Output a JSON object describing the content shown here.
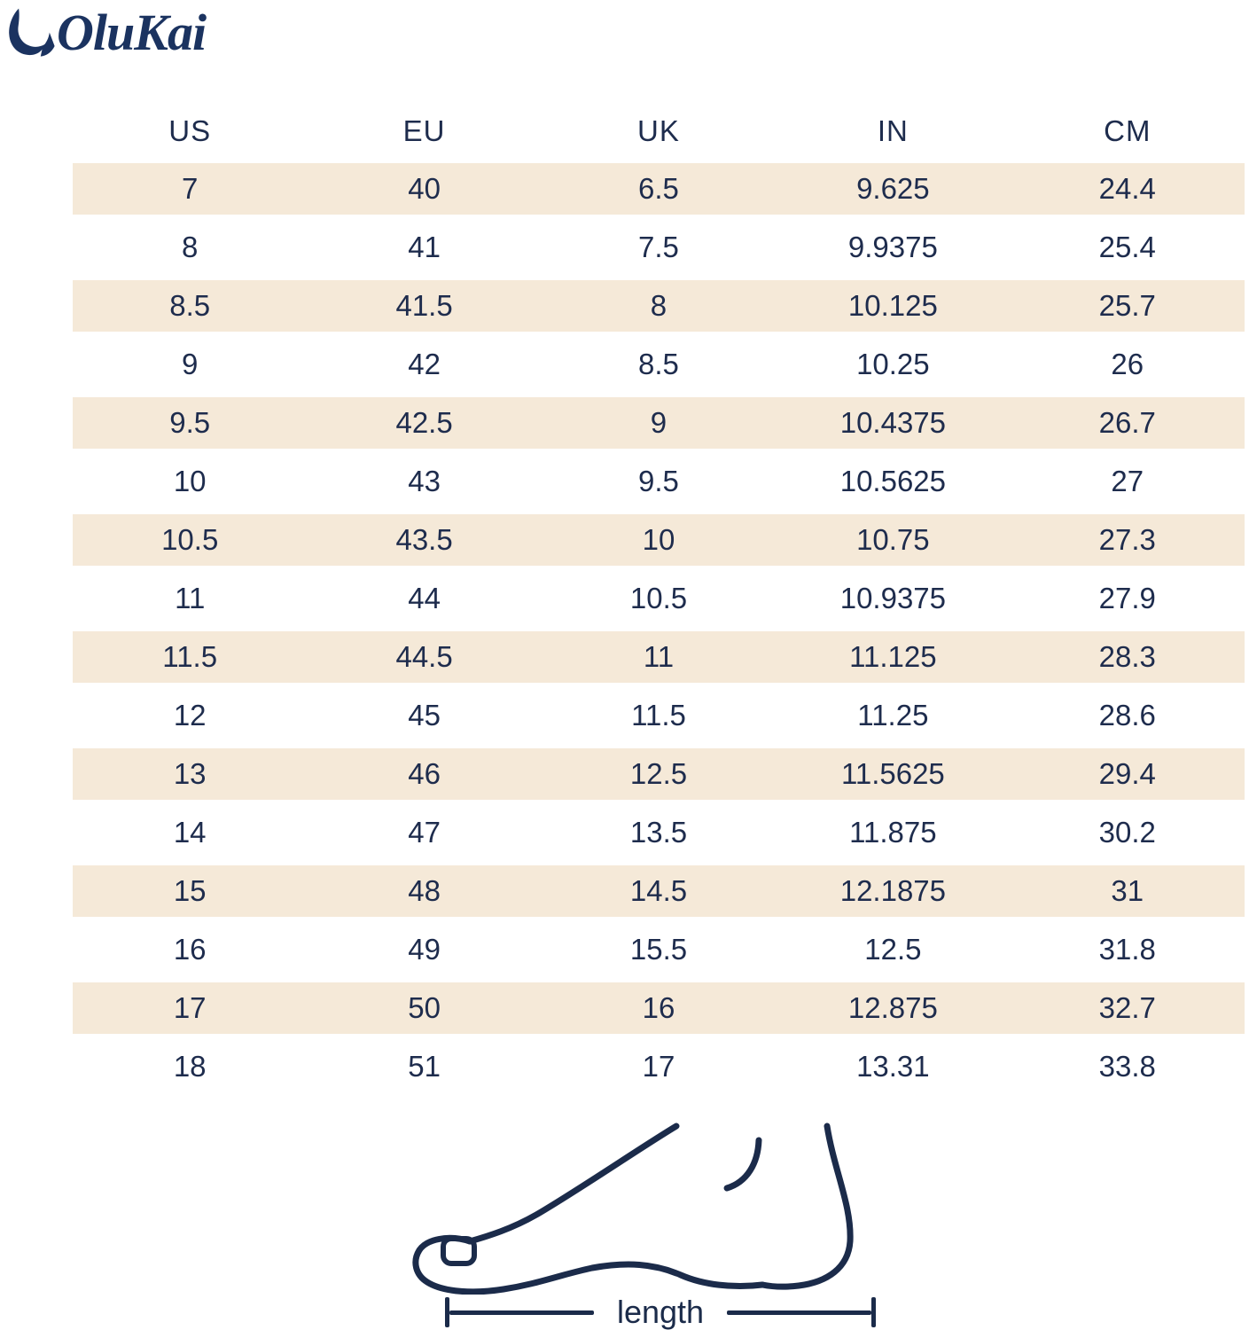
{
  "brand": {
    "name": "OluKai"
  },
  "colors": {
    "navy_text": "#1e2c4d",
    "logo_navy": "#1b3360",
    "band_beige": "#f5e9d8",
    "line_navy": "#1b2b4a",
    "background": "#ffffff"
  },
  "chart_data": {
    "type": "table",
    "columns": [
      "US",
      "EU",
      "UK",
      "IN",
      "CM"
    ],
    "rows": [
      [
        "7",
        "40",
        "6.5",
        "9.625",
        "24.4"
      ],
      [
        "8",
        "41",
        "7.5",
        "9.9375",
        "25.4"
      ],
      [
        "8.5",
        "41.5",
        "8",
        "10.125",
        "25.7"
      ],
      [
        "9",
        "42",
        "8.5",
        "10.25",
        "26"
      ],
      [
        "9.5",
        "42.5",
        "9",
        "10.4375",
        "26.7"
      ],
      [
        "10",
        "43",
        "9.5",
        "10.5625",
        "27"
      ],
      [
        "10.5",
        "43.5",
        "10",
        "10.75",
        "27.3"
      ],
      [
        "11",
        "44",
        "10.5",
        "10.9375",
        "27.9"
      ],
      [
        "11.5",
        "44.5",
        "11",
        "11.125",
        "28.3"
      ],
      [
        "12",
        "45",
        "11.5",
        "11.25",
        "28.6"
      ],
      [
        "13",
        "46",
        "12.5",
        "11.5625",
        "29.4"
      ],
      [
        "14",
        "47",
        "13.5",
        "11.875",
        "30.2"
      ],
      [
        "15",
        "48",
        "14.5",
        "12.1875",
        "31"
      ],
      [
        "16",
        "49",
        "15.5",
        "12.5",
        "31.8"
      ],
      [
        "17",
        "50",
        "16",
        "12.875",
        "32.7"
      ],
      [
        "18",
        "51",
        "17",
        "13.31",
        "33.8"
      ]
    ],
    "banded_row_indices": [
      0,
      2,
      4,
      6,
      8,
      10,
      12,
      14
    ],
    "layout": {
      "banding_color": "#f5e9d8",
      "grid": "none",
      "header_position": "top"
    }
  },
  "figure": {
    "label": "length"
  }
}
